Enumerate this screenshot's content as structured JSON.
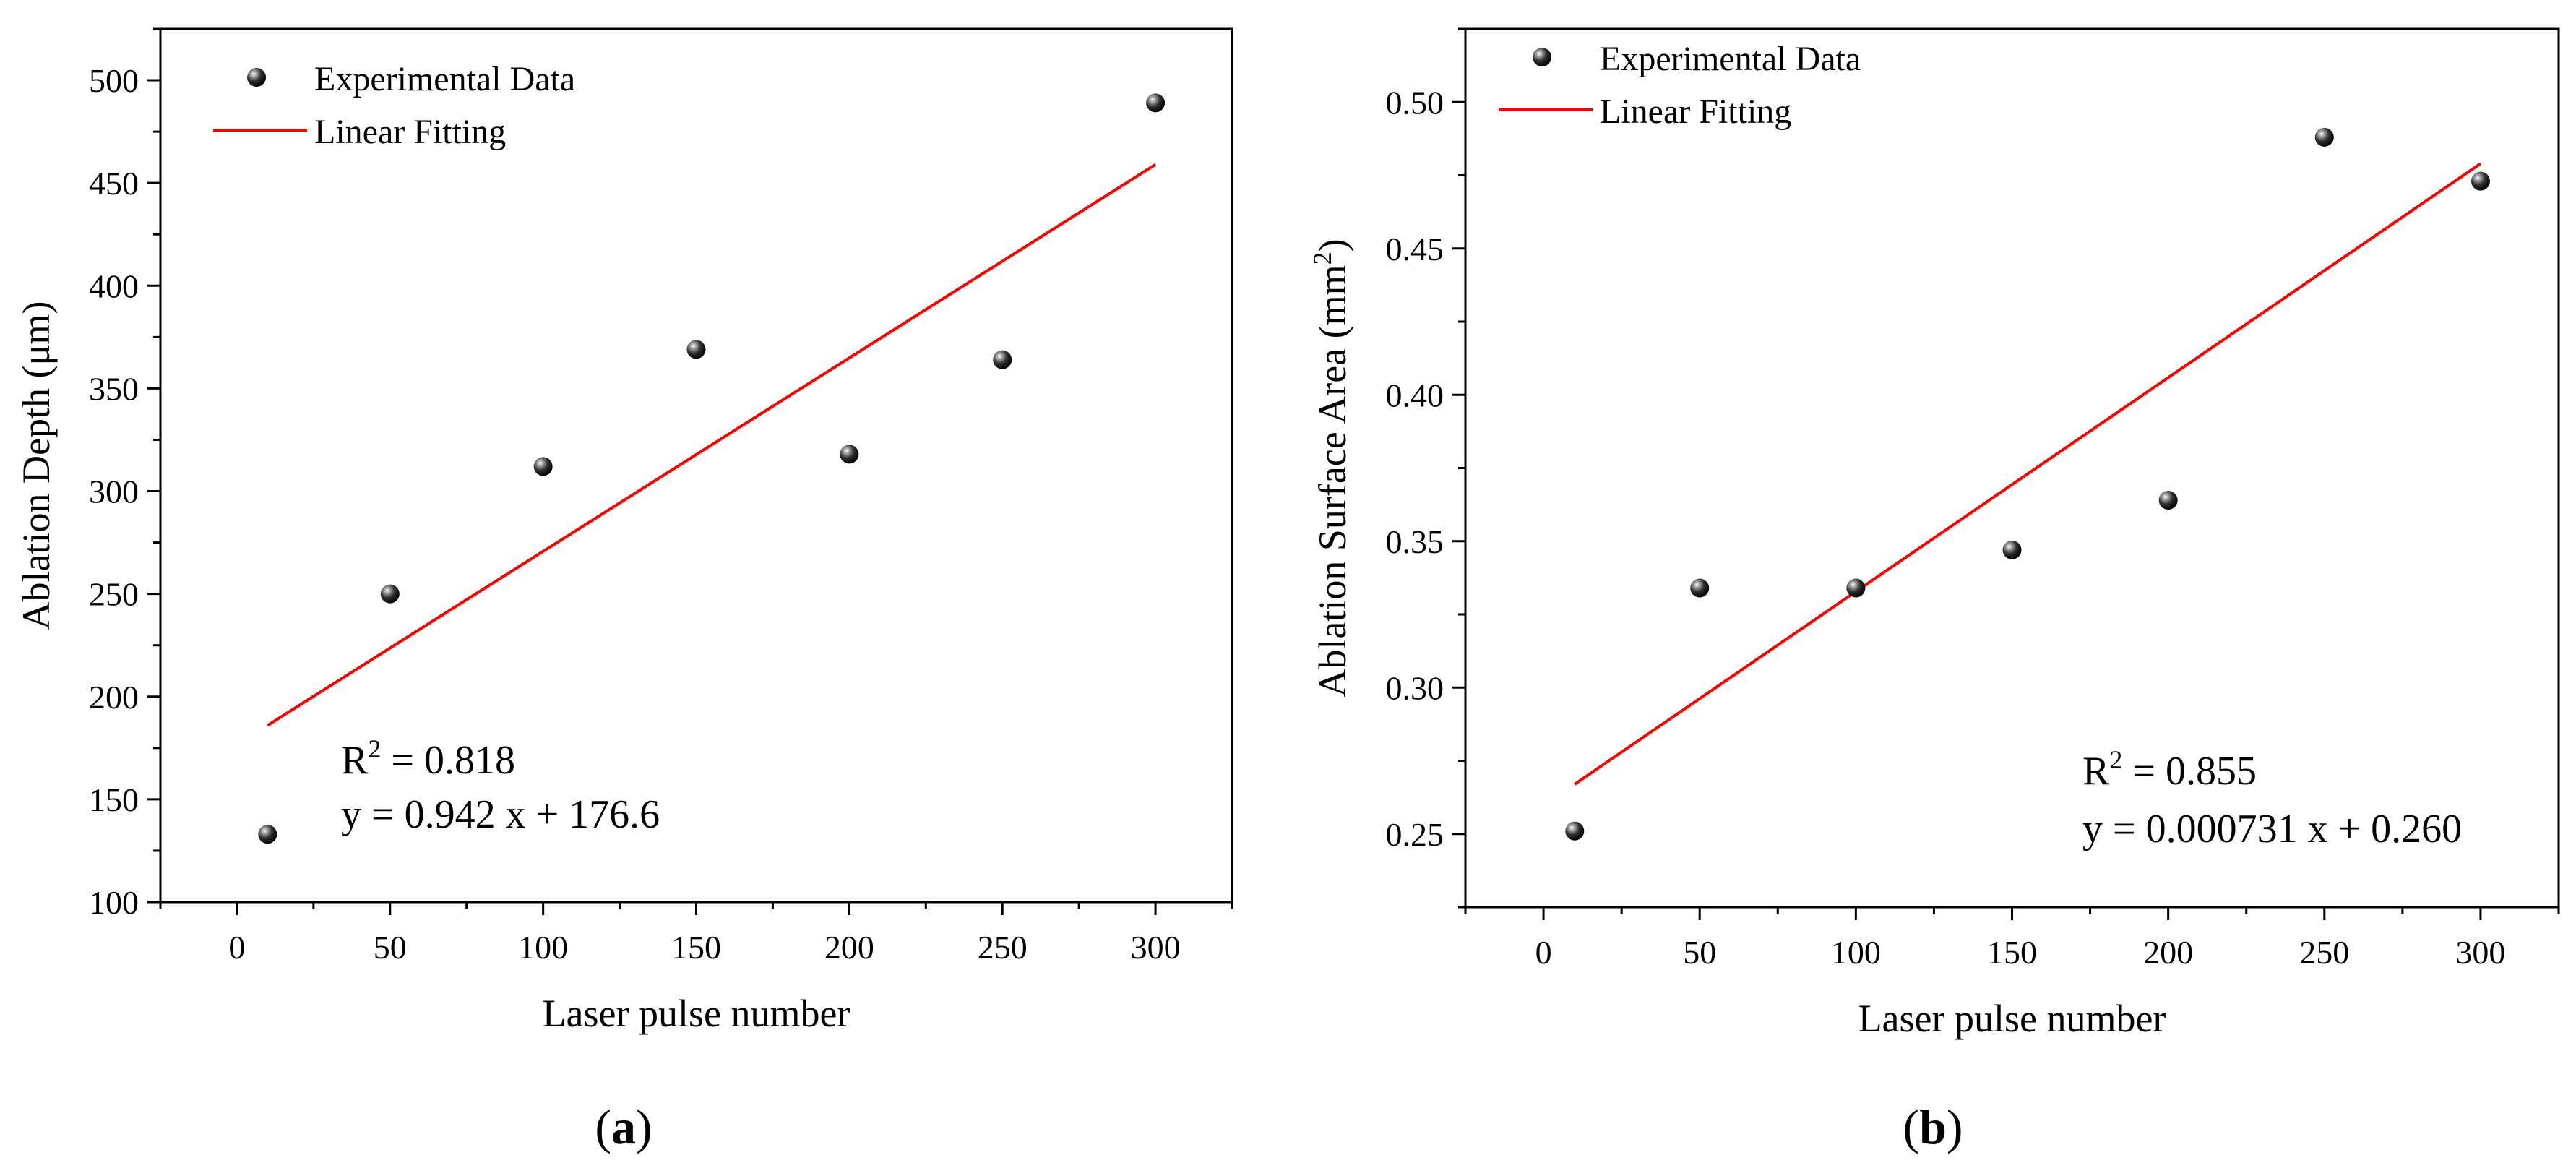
{
  "chart_data": [
    {
      "type": "scatter",
      "panel_label": {
        "open": "(",
        "letter": "a",
        "close": ")"
      },
      "xlabel": "Laser pulse number",
      "ylabel": "Ablation Depth (μm)",
      "ylabel_superscript": "",
      "ylabel_suffix": "",
      "xlim": [
        -25,
        325
      ],
      "ylim": [
        100,
        525
      ],
      "xticks": [
        0,
        50,
        100,
        150,
        200,
        250,
        300
      ],
      "yticks": [
        100,
        150,
        200,
        250,
        300,
        350,
        400,
        450,
        500
      ],
      "ytick_decimals": 0,
      "series": [
        {
          "name": "Experimental Data",
          "kind": "scatter",
          "x": [
            10,
            50,
            100,
            150,
            200,
            250,
            300
          ],
          "y": [
            133,
            250,
            312,
            369,
            318,
            364,
            489
          ]
        },
        {
          "name": "Linear Fitting",
          "kind": "line",
          "color": "#ff0000",
          "x": [
            10,
            300
          ],
          "y": [
            186,
            459
          ]
        }
      ],
      "legend": {
        "placement": "top-left",
        "entries": [
          "Experimental Data",
          "Linear Fitting"
        ]
      },
      "annotation": {
        "r2_prefix": "R",
        "r2_sup": "2",
        "r2_value": " = 0.818",
        "equation": "y = 0.942 x + 176.6"
      }
    },
    {
      "type": "scatter",
      "panel_label": {
        "open": "(",
        "letter": "b",
        "close": ")"
      },
      "xlabel": "Laser pulse number",
      "ylabel": "Ablation Surface Area (mm",
      "ylabel_superscript": "2",
      "ylabel_suffix": ")",
      "xlim": [
        -25,
        325
      ],
      "ylim": [
        0.225,
        0.525
      ],
      "xticks": [
        0,
        50,
        100,
        150,
        200,
        250,
        300
      ],
      "yticks": [
        0.25,
        0.3,
        0.35,
        0.4,
        0.45,
        0.5
      ],
      "ytick_decimals": 2,
      "series": [
        {
          "name": "Experimental Data",
          "kind": "scatter",
          "x": [
            10,
            50,
            100,
            150,
            200,
            250,
            300
          ],
          "y": [
            0.251,
            0.334,
            0.334,
            0.347,
            0.364,
            0.488,
            0.473
          ]
        },
        {
          "name": "Linear Fitting",
          "kind": "line",
          "color": "#ff0000",
          "x": [
            10,
            300
          ],
          "y": [
            0.267,
            0.479
          ]
        }
      ],
      "legend": {
        "placement": "top-left",
        "entries": [
          "Experimental Data",
          "Linear Fitting"
        ]
      },
      "annotation": {
        "r2_prefix": "R",
        "r2_sup": "2",
        "r2_value": " = 0.855",
        "equation": "y = 0.000731 x + 0.260"
      }
    }
  ]
}
